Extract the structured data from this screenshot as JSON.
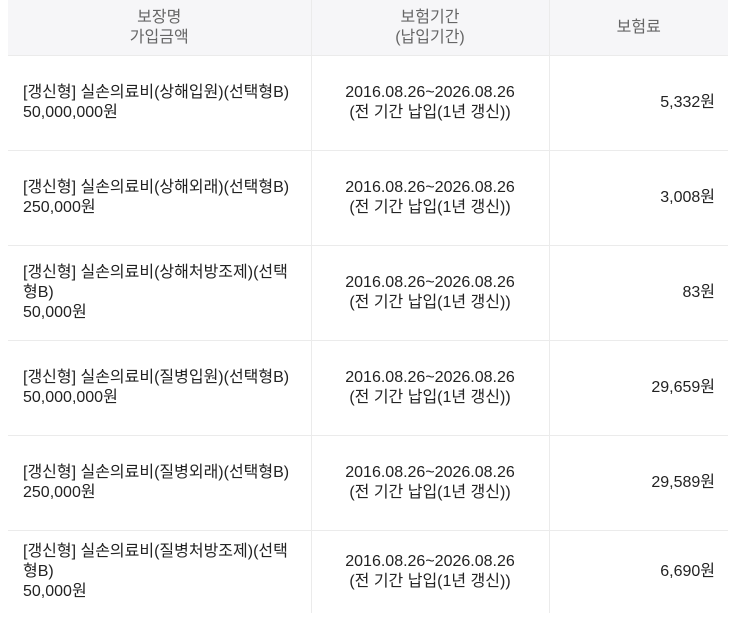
{
  "header": {
    "col1_line1": "보장명",
    "col1_line2": "가입금액",
    "col2_line1": "보험기간",
    "col2_line2": "(납입기간)",
    "col3": "보험료"
  },
  "rows": [
    {
      "name": "[갱신형] 실손의료비(상해입원)(선택형B)",
      "amount": "50,000,000원",
      "period": "2016.08.26~2026.08.26",
      "payment": "(전 기간 납입(1년 갱신))",
      "premium": "5,332원"
    },
    {
      "name": "[갱신형] 실손의료비(상해외래)(선택형B)",
      "amount": "250,000원",
      "period": "2016.08.26~2026.08.26",
      "payment": "(전 기간 납입(1년 갱신))",
      "premium": "3,008원"
    },
    {
      "name": "[갱신형] 실손의료비(상해처방조제)(선택형B)",
      "amount": "50,000원",
      "period": "2016.08.26~2026.08.26",
      "payment": "(전 기간 납입(1년 갱신))",
      "premium": "83원"
    },
    {
      "name": "[갱신형] 실손의료비(질병입원)(선택형B)",
      "amount": "50,000,000원",
      "period": "2016.08.26~2026.08.26",
      "payment": "(전 기간 납입(1년 갱신))",
      "premium": "29,659원"
    },
    {
      "name": "[갱신형] 실손의료비(질병외래)(선택형B)",
      "amount": "250,000원",
      "period": "2016.08.26~2026.08.26",
      "payment": "(전 기간 납입(1년 갱신))",
      "premium": "29,589원"
    },
    {
      "name": "[갱신형] 실손의료비(질병처방조제)(선택형B)",
      "amount": "50,000원",
      "period": "2016.08.26~2026.08.26",
      "payment": "(전 기간 납입(1년 갱신))",
      "premium": "6,690원"
    }
  ]
}
